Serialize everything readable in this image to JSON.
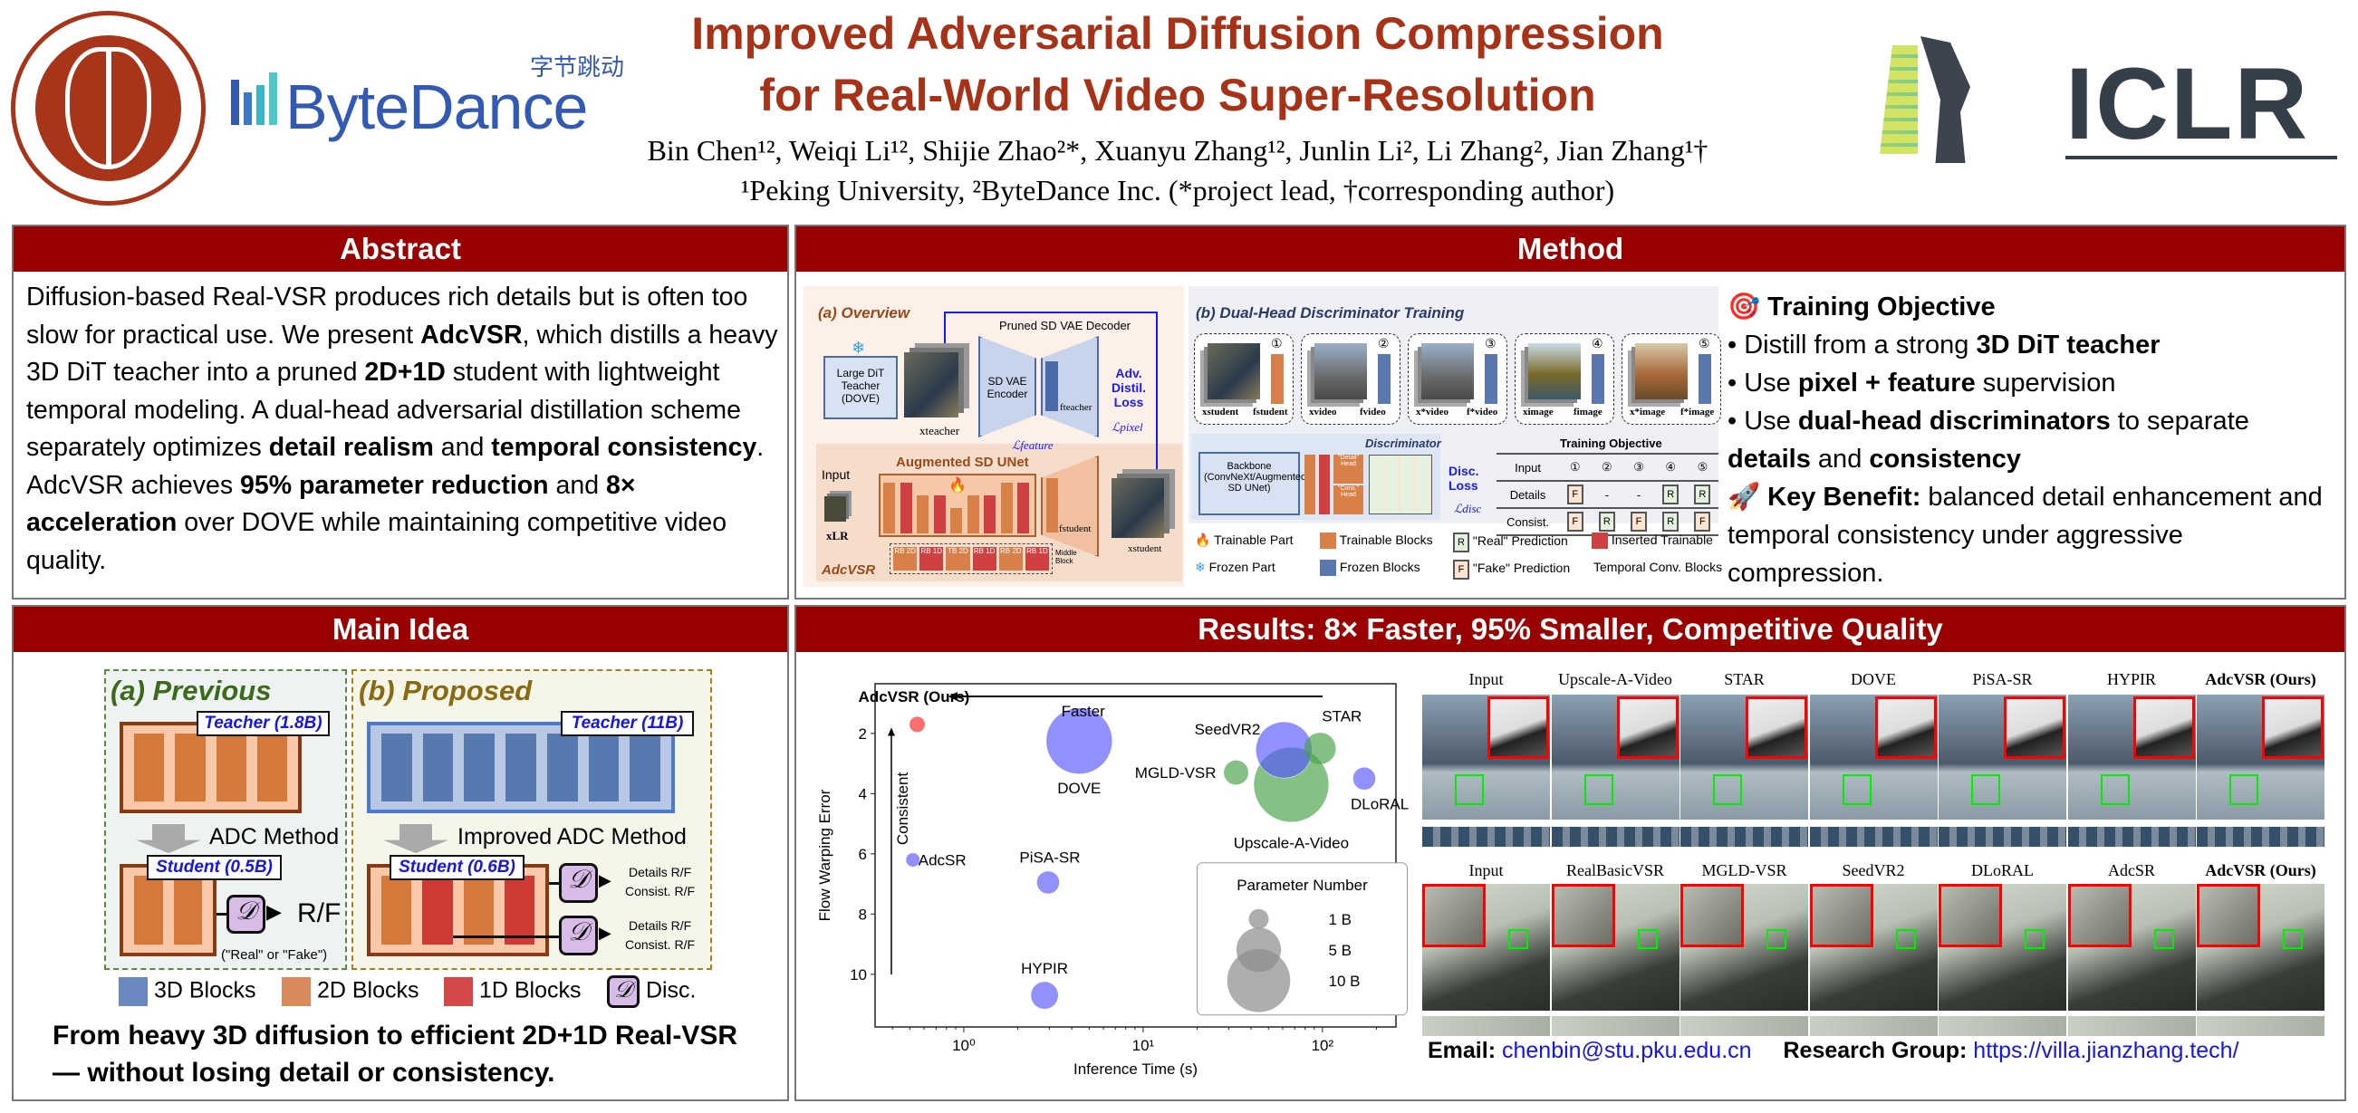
{
  "header": {
    "title_line1": "Improved Adversarial Diffusion Compression",
    "title_line2": "for Real-World Video Super-Resolution",
    "authors": "Bin Chen¹², Weiqi Li¹², Shijie Zhao²*, Xuanyu Zhang¹², Junlin Li², Li Zhang², Jian Zhang¹†",
    "affiliations": "¹Peking University, ²ByteDance Inc. (*project lead, †corresponding author)",
    "logos": {
      "pku": "PEKING UNIVERSITY 1898",
      "bytedance": "ByteDance",
      "bytedance_cn": "字节跳动",
      "iclr": "ICLR"
    }
  },
  "abstract": {
    "heading": "Abstract",
    "p1": "Diffusion-based Real-VSR produces rich details but is often too slow for practical use. We present ",
    "b1": "AdcVSR",
    "p2": ", which distills a heavy 3D DiT teacher into a pruned ",
    "b2": "2D+1D",
    "p3": " student with lightweight temporal modeling. A dual-head adversarial distillation scheme separately optimizes ",
    "b3": "detail realism",
    "p4": " and ",
    "b4": "temporal consistency",
    "p5": ". AdcVSR achieves ",
    "b5": "95% parameter reduction",
    "p6": " and ",
    "b6": "8× acceleration",
    "p7": " over DOVE while maintaining competitive video quality."
  },
  "method": {
    "heading": "Method",
    "overview": {
      "title": "(a) Overview",
      "teacher": "Large DiT Teacher (DOVE)",
      "decoder": "Pruned SD VAE Decoder",
      "encoder": "SD VAE Encoder",
      "loss": "Adv. Distil. Loss",
      "l_pixel": "ℒpixel",
      "l_feature": "ℒfeature",
      "unet": "Augmented SD UNet",
      "input": "Input",
      "x_lr": "xLR",
      "x_teacher": "xteacher",
      "x_student": "xstudent",
      "f_teacher": "fteacher",
      "f_student": "fstudent",
      "middle_blocks": [
        "RB 2D",
        "RB 1D",
        "TB 2D",
        "RB 1D",
        "RB 2D",
        "RB 1D"
      ],
      "middle_label": "Middle Block",
      "name": "AdcVSR"
    },
    "disc": {
      "title": "(b) Dual-Head Discriminator Training",
      "cards": [
        {
          "num": "①",
          "x": "xstudent",
          "f": "fstudent"
        },
        {
          "num": "②",
          "x": "xvideo",
          "f": "fvideo"
        },
        {
          "num": "③",
          "x": "x*video",
          "f": "f*video"
        },
        {
          "num": "④",
          "x": "ximage",
          "f": "fimage"
        },
        {
          "num": "⑤",
          "x": "x*image",
          "f": "f*image"
        }
      ],
      "discriminator_label": "Discriminator",
      "backbone": "Backbone (ConvNeXt/Augmented SD UNet)",
      "detail_head": "\"Detail\" Head",
      "cons_head": "\"Cons.\" Head",
      "disc_loss": "Disc. Loss",
      "l_disc": "ℒdisc",
      "objective_title": "Training Objective",
      "table_header": [
        "Input",
        "①",
        "②",
        "③",
        "④",
        "⑤"
      ],
      "table_rows": [
        {
          "label": "Details",
          "cells": [
            "F",
            "-",
            "-",
            "R",
            "R"
          ]
        },
        {
          "label": "Consist.",
          "cells": [
            "F",
            "R",
            "F",
            "R",
            "F"
          ]
        }
      ]
    },
    "legend": [
      "Trainable Part",
      "Trainable Blocks",
      "\"Real\" Prediction",
      "Inserted Trainable",
      "Frozen Part",
      "Frozen Blocks",
      "\"Fake\" Prediction",
      "Temporal Conv. Blocks"
    ],
    "objective": {
      "heading": "Training Objective",
      "icon": "target-icon",
      "b1_pre": "Distill from a strong ",
      "b1_bold": "3D DiT teacher",
      "b2_pre": "Use ",
      "b2_bold": "pixel + feature",
      "b2_post": " supervision",
      "b3_pre": "Use ",
      "b3_bold": "dual-head discriminators",
      "b3_post": " to separate ",
      "b3_bold2": "details",
      "b3_and": " and ",
      "b3_bold3": "consistency"
    },
    "benefit": {
      "icon": "rocket-icon",
      "heading": "Key Benefit:",
      "text": " balanced detail enhancement and temporal consistency under aggressive compression."
    }
  },
  "main_idea": {
    "heading": "Main Idea",
    "previous": "(a) Previous",
    "proposed": "(b) Proposed",
    "teacher_prev": "Teacher (1.8B)",
    "teacher_new": "Teacher (11B)",
    "adc": "ADC Method",
    "improved_adc": "Improved ADC Method",
    "student_prev": "Student (0.5B)",
    "student_new": "Student (0.6B)",
    "disc_symbol": "𝒟",
    "rf": "R/F",
    "real_fake": "(\"Real\" or \"Fake\")",
    "details_rf": "Details R/F",
    "consist_rf": "Consist. R/F",
    "legend": [
      "3D Blocks",
      "2D Blocks",
      "1D Blocks",
      "Disc."
    ],
    "tagline1": "From heavy 3D diffusion to efficient 2D+1D Real-VSR",
    "tagline2": "— without losing detail or consistency."
  },
  "results": {
    "heading": "Results: 8× Faster, 95% Smaller, Competitive Quality",
    "row1_labels": [
      "Input",
      "Upscale-A-Video",
      "STAR",
      "DOVE",
      "PiSA-SR",
      "HYPIR",
      "AdcVSR (Ours)"
    ],
    "row2_labels": [
      "Input",
      "RealBasicVSR",
      "MGLD-VSR",
      "SeedVR2",
      "DLoRAL",
      "AdcSR",
      "AdcVSR (Ours)"
    ],
    "email_label": "Email:",
    "email": "chenbin@stu.pku.edu.cn",
    "group_label": "Research Group:",
    "group_url": "https://villa.jianzhang.tech/"
  },
  "chart_data": {
    "type": "scatter",
    "xlabel": "Inference Time (s)",
    "ylabel": "Flow Warping Error",
    "xscale": "log",
    "xlim": [
      0.32,
      257
    ],
    "ylim": [
      11.75,
      0.35
    ],
    "y_inverted": true,
    "xticks": [
      "10⁰",
      "10¹",
      "10²"
    ],
    "xtick_values": [
      1,
      10,
      100
    ],
    "yticks": [
      2,
      4,
      6,
      8,
      10
    ],
    "grid": false,
    "annotations": {
      "faster": "Faster",
      "consistent": "Consistent"
    },
    "legend": {
      "title": "Parameter Number",
      "entries": [
        {
          "label": "1 B",
          "size": 1
        },
        {
          "label": "5 B",
          "size": 5
        },
        {
          "label": "10 B",
          "size": 10
        }
      ],
      "placement": "bottom-right"
    },
    "colors": {
      "ours": "#ff6666",
      "blue": "#5555ff",
      "green": "#44a044",
      "legend": "#8c8c8c"
    },
    "points": [
      {
        "name": "AdcVSR (Ours)",
        "time": 0.55,
        "error": 1.7,
        "params": 0.6,
        "color": "ours",
        "bold": true
      },
      {
        "name": "DOVE",
        "time": 4.4,
        "error": 2.25,
        "params": 11,
        "color": "blue"
      },
      {
        "name": "Upscale-A-Video",
        "time": 67,
        "error": 3.7,
        "params": 14,
        "color": "green"
      },
      {
        "name": "SeedVR2",
        "time": 61,
        "error": 2.55,
        "params": 8,
        "color": "blue"
      },
      {
        "name": "STAR",
        "time": 97,
        "error": 2.5,
        "params": 2.5,
        "color": "green"
      },
      {
        "name": "MGLD-VSR",
        "time": 33,
        "error": 3.3,
        "params": 1.5,
        "color": "green"
      },
      {
        "name": "DLoRAL",
        "time": 171,
        "error": 3.5,
        "params": 1.3,
        "color": "blue"
      },
      {
        "name": "AdcSR",
        "time": 0.52,
        "error": 6.2,
        "params": 0.5,
        "color": "blue"
      },
      {
        "name": "PiSA-SR",
        "time": 2.95,
        "error": 6.95,
        "params": 1.3,
        "color": "blue"
      },
      {
        "name": "HYPIR",
        "time": 2.82,
        "error": 10.7,
        "params": 1.9,
        "color": "blue"
      }
    ]
  }
}
